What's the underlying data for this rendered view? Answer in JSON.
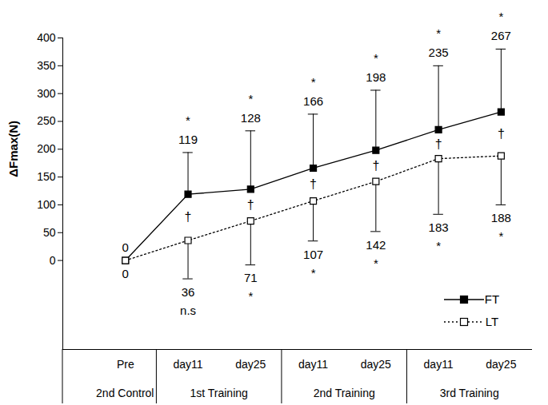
{
  "chart_data": {
    "type": "line",
    "y_label": "ΔFmax(N)",
    "categories": [
      "Pre",
      "day11",
      "day25",
      "day11",
      "day25",
      "day11",
      "day25"
    ],
    "category_groups": [
      "2nd Control",
      "1st Training",
      "1st Training",
      "2nd Training",
      "2nd Training",
      "3rd Training",
      "3rd Training"
    ],
    "series": [
      {
        "name": "FT",
        "color": "#000000",
        "marker": "square",
        "line_style": "solid",
        "values": [
          0,
          119,
          128,
          166,
          198,
          235,
          267
        ],
        "errors": [
          null,
          75,
          105,
          97,
          108,
          115,
          113
        ],
        "annotations": [
          null,
          "*",
          "*",
          "*",
          "*",
          "*",
          "*"
        ]
      },
      {
        "name": "LT",
        "color": "#000000",
        "marker": "open_square",
        "line_style": "dotted",
        "values": [
          0,
          36,
          71,
          107,
          142,
          183,
          188
        ],
        "errors": [
          null,
          69,
          79,
          72,
          90,
          100,
          88
        ],
        "annotations": [
          null,
          "n.s",
          "*",
          "*",
          "*",
          "*",
          "*"
        ]
      }
    ],
    "between_series": [
      null,
      "†",
      "†",
      "†",
      "†",
      "†",
      "†"
    ],
    "ylim": [
      -160,
      400
    ],
    "yticks": [
      0,
      50,
      100,
      150,
      200,
      250,
      300,
      350,
      400
    ],
    "data_labels": true,
    "legend": "lower right"
  }
}
